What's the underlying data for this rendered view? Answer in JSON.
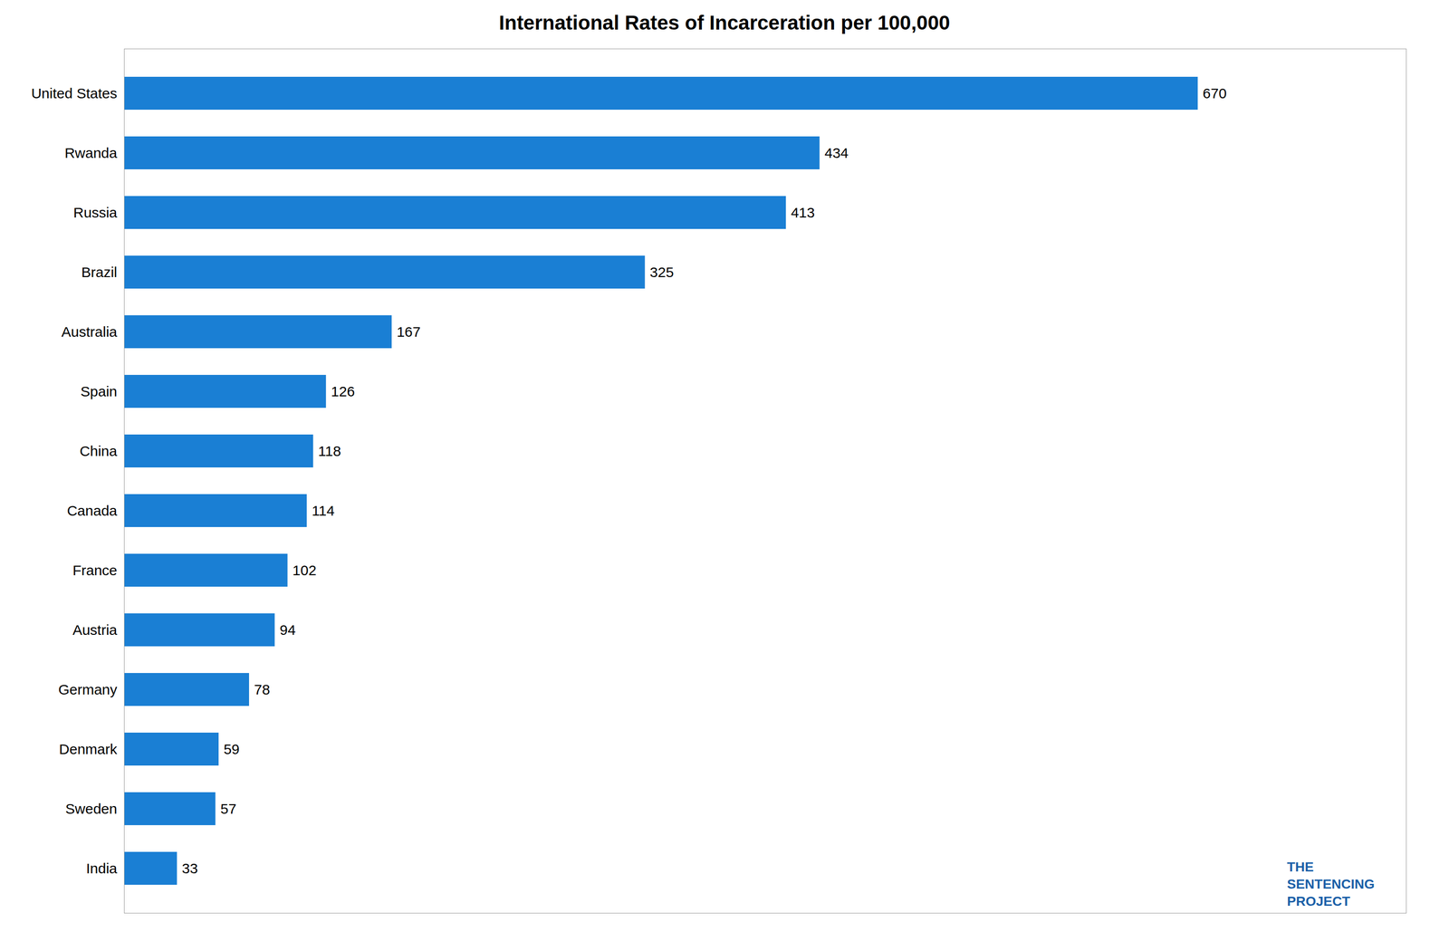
{
  "chart_data": {
    "type": "bar",
    "orientation": "horizontal",
    "title": "International Rates of Incarceration per 100,000",
    "categories": [
      "United States",
      "Rwanda",
      "Russia",
      "Brazil",
      "Australia",
      "Spain",
      "China",
      "Canada",
      "France",
      "Austria",
      "Germany",
      "Denmark",
      "Sweden",
      "India"
    ],
    "values": [
      670,
      434,
      413,
      325,
      167,
      126,
      118,
      114,
      102,
      94,
      78,
      59,
      57,
      33
    ],
    "color": "#1a7fd4",
    "xlim": [
      0,
      800
    ],
    "data_labels": true,
    "tick_labels": "y",
    "grid": false,
    "annotations": [
      {
        "text": "THE",
        "color": "#1a5fa8"
      },
      {
        "text": "SENTENCING",
        "color": "#1a5fa8"
      },
      {
        "text": "PROJECT",
        "color": "#1a5fa8"
      }
    ]
  }
}
